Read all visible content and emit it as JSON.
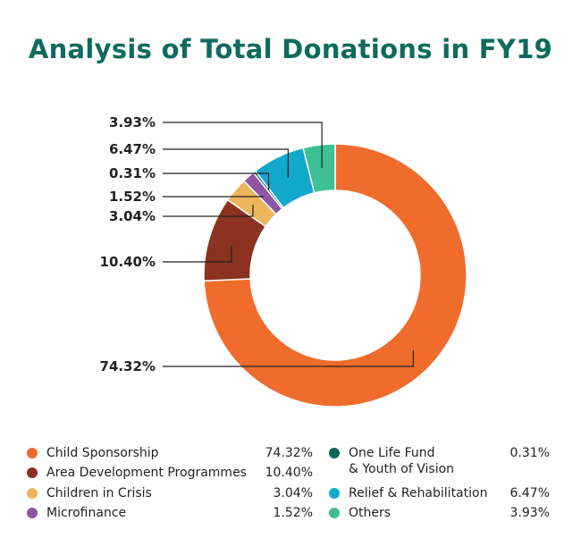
{
  "chart_data": {
    "type": "pie",
    "title": "Analysis of Total Donations in FY19",
    "categories": [
      "Child Sponsorship",
      "Area Development Programmes",
      "Children in Crisis",
      "Microfinance",
      "One Life Fund & Youth of Vision",
      "Relief & Rehabilitation",
      "Others"
    ],
    "values": [
      74.32,
      10.4,
      3.04,
      1.52,
      0.31,
      6.47,
      3.93
    ],
    "value_labels": [
      "74.32%",
      "10.40%",
      "3.04%",
      "1.52%",
      "0.31%",
      "6.47%",
      "3.93%"
    ],
    "colors": [
      "#ef6c2c",
      "#8b3220",
      "#edb55c",
      "#8d55a2",
      "#12655a",
      "#11a8cc",
      "#3fbf96"
    ],
    "donut": true,
    "legend_position": "bottom"
  },
  "legend": {
    "items": [
      {
        "name_line1": "Child Sponsorship",
        "name_line2": "",
        "value": "74.32%",
        "color": "#ef6c2c"
      },
      {
        "name_line1": "Area Development Programmes",
        "name_line2": "",
        "value": "10.40%",
        "color": "#8b3220"
      },
      {
        "name_line1": "Children in Crisis",
        "name_line2": "",
        "value": "3.04%",
        "color": "#edb55c"
      },
      {
        "name_line1": "Microfinance",
        "name_line2": "",
        "value": "1.52%",
        "color": "#8d55a2"
      },
      {
        "name_line1": "One Life Fund",
        "name_line2": "& Youth of Vision",
        "value": "0.31%",
        "color": "#12655a"
      },
      {
        "name_line1": "Relief & Rehabilitation",
        "name_line2": "",
        "value": "6.47%",
        "color": "#11a8cc"
      },
      {
        "name_line1": "Others",
        "name_line2": "",
        "value": "3.93%",
        "color": "#3fbf96"
      }
    ]
  }
}
